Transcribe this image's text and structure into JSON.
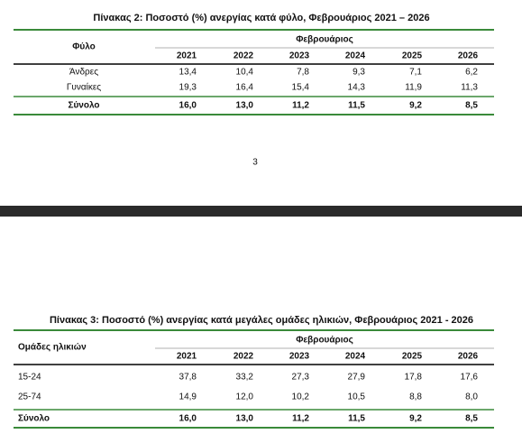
{
  "table2": {
    "title": "Πίνακας 2: Ποσοστό (%) ανεργίας κατά φύλο, Φεβρουάριος 2021 – 2026",
    "row_header": "Φύλο",
    "group_header": "Φεβρουάριος",
    "columns": [
      "2021",
      "2022",
      "2023",
      "2024",
      "2025",
      "2026"
    ],
    "rows": [
      {
        "label": "Άνδρες",
        "values": [
          "13,4",
          "10,4",
          "7,8",
          "9,3",
          "7,1",
          "6,2"
        ]
      },
      {
        "label": "Γυναίκες",
        "values": [
          "19,3",
          "16,4",
          "15,4",
          "14,3",
          "11,9",
          "11,3"
        ]
      }
    ],
    "total": {
      "label": "Σύνολο",
      "values": [
        "16,0",
        "13,0",
        "11,2",
        "11,5",
        "9,2",
        "8,5"
      ]
    }
  },
  "page_number": "3",
  "table3": {
    "title": "Πίνακας 3: Ποσοστό (%) ανεργίας κατά μεγάλες ομάδες ηλικιών, Φεβρουάριος 2021 - 2026",
    "row_header": "Ομάδες ηλικιών",
    "group_header": "Φεβρουάριος",
    "columns": [
      "2021",
      "2022",
      "2023",
      "2024",
      "2025",
      "2026"
    ],
    "rows": [
      {
        "label": "15-24",
        "values": [
          "37,8",
          "33,2",
          "27,3",
          "27,9",
          "17,8",
          "17,6"
        ]
      },
      {
        "label": "25-74",
        "values": [
          "14,9",
          "12,0",
          "10,2",
          "10,5",
          "8,8",
          "8,0"
        ]
      }
    ],
    "total": {
      "label": "Σύνολο",
      "values": [
        "16,0",
        "13,0",
        "11,2",
        "11,5",
        "9,2",
        "8,5"
      ]
    }
  }
}
